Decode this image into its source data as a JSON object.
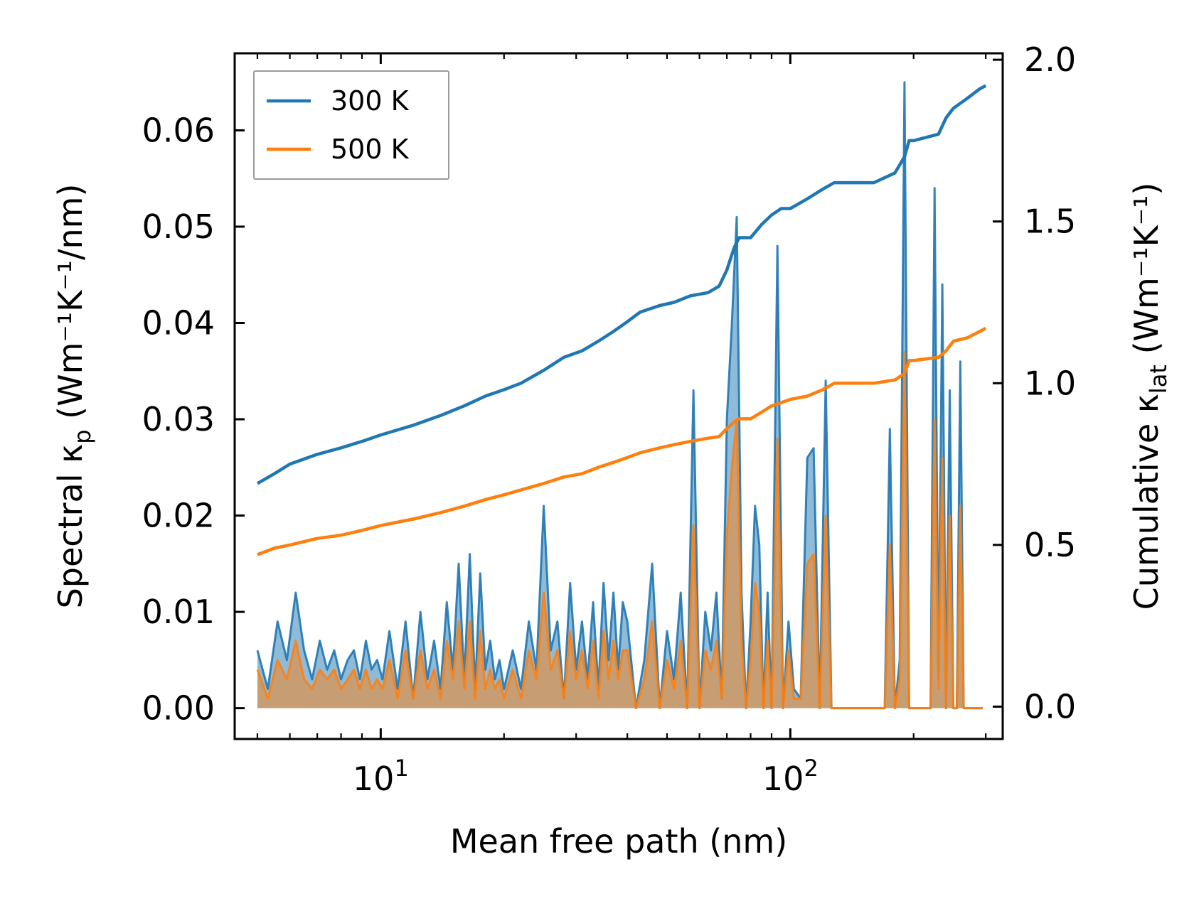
{
  "chart_data": {
    "type": "line",
    "xscale": "log",
    "xlabel": "Mean free path (nm)",
    "ylabel_left": {
      "prefix": "Spectral κ",
      "sub": "p",
      "suffix": " (Wm⁻¹K⁻¹/nm)"
    },
    "ylabel_right": {
      "prefix": "Cumulative κ",
      "sub": "lat",
      "suffix": " (Wm⁻¹K⁻¹)"
    },
    "xlim": [
      4.4,
      330
    ],
    "ylim_left": [
      -0.0032,
      0.068
    ],
    "ylim_right": [
      -0.1,
      2.02
    ],
    "xticks": [
      {
        "value": 10,
        "base": "10",
        "exp": "1"
      },
      {
        "value": 100,
        "base": "10",
        "exp": "2"
      }
    ],
    "yticks_left": [
      "0.00",
      "0.01",
      "0.02",
      "0.03",
      "0.04",
      "0.05",
      "0.06"
    ],
    "yticks_right": [
      "0.0",
      "0.5",
      "1.0",
      "1.5",
      "2.0"
    ],
    "legend": {
      "position": "top-left",
      "entries": [
        {
          "label": "300 K",
          "color": "#1f77b4"
        },
        {
          "label": "500 K",
          "color": "#ff7f0e"
        }
      ]
    },
    "series": [
      {
        "name": "300 K cumulative",
        "axis": "right",
        "color": "#1f77b4",
        "x": [
          5.0,
          5.5,
          6.0,
          7.0,
          8.0,
          9.0,
          10.0,
          12.0,
          14.0,
          16.0,
          18.0,
          20.0,
          22.0,
          25.0,
          28.0,
          31.0,
          34.0,
          37.0,
          40.0,
          43.0,
          48.0,
          52.0,
          57.0,
          63.0,
          67.0,
          70.0,
          73.0,
          75.0,
          80.0,
          85.0,
          90.0,
          95.0,
          100.0,
          110.0,
          120.0,
          128.0,
          140.0,
          160.0,
          180.0,
          190.0,
          195.0,
          200.0,
          230.0,
          240.0,
          250.0,
          270.0,
          290.0,
          300.0
        ],
        "y": [
          0.69,
          0.72,
          0.75,
          0.78,
          0.8,
          0.82,
          0.84,
          0.87,
          0.9,
          0.93,
          0.96,
          0.98,
          1.0,
          1.04,
          1.08,
          1.1,
          1.13,
          1.16,
          1.19,
          1.22,
          1.24,
          1.25,
          1.27,
          1.28,
          1.3,
          1.35,
          1.42,
          1.45,
          1.45,
          1.49,
          1.52,
          1.54,
          1.54,
          1.57,
          1.6,
          1.62,
          1.62,
          1.62,
          1.65,
          1.7,
          1.75,
          1.75,
          1.77,
          1.82,
          1.85,
          1.88,
          1.91,
          1.92
        ]
      },
      {
        "name": "500 K cumulative",
        "axis": "right",
        "color": "#ff7f0e",
        "x": [
          5.0,
          5.5,
          6.0,
          7.0,
          8.0,
          9.0,
          10.0,
          12.0,
          14.0,
          16.0,
          18.0,
          20.0,
          22.0,
          25.0,
          28.0,
          31.0,
          34.0,
          37.0,
          40.0,
          43.0,
          48.0,
          52.0,
          57.0,
          63.0,
          67.0,
          70.0,
          73.0,
          75.0,
          80.0,
          85.0,
          90.0,
          95.0,
          100.0,
          110.0,
          120.0,
          128.0,
          140.0,
          160.0,
          180.0,
          190.0,
          195.0,
          200.0,
          230.0,
          240.0,
          250.0,
          270.0,
          290.0,
          300.0
        ],
        "y": [
          0.47,
          0.49,
          0.5,
          0.52,
          0.53,
          0.545,
          0.56,
          0.58,
          0.6,
          0.62,
          0.64,
          0.655,
          0.67,
          0.69,
          0.71,
          0.72,
          0.74,
          0.755,
          0.77,
          0.785,
          0.8,
          0.81,
          0.82,
          0.83,
          0.835,
          0.86,
          0.88,
          0.89,
          0.89,
          0.91,
          0.93,
          0.94,
          0.95,
          0.96,
          0.98,
          1.0,
          1.0,
          1.0,
          1.01,
          1.03,
          1.07,
          1.07,
          1.08,
          1.1,
          1.13,
          1.14,
          1.16,
          1.17
        ]
      },
      {
        "name": "300 K spectral",
        "axis": "left",
        "color": "#1f77b4",
        "fill": true,
        "x": [
          5.0,
          5.3,
          5.6,
          5.9,
          6.2,
          6.5,
          6.8,
          7.1,
          7.4,
          7.7,
          8.0,
          8.3,
          8.6,
          8.9,
          9.2,
          9.5,
          9.8,
          10.1,
          10.5,
          11.0,
          11.5,
          12.0,
          12.5,
          13.0,
          13.5,
          14.0,
          14.5,
          15.0,
          15.5,
          16.0,
          16.5,
          17.0,
          17.5,
          18.0,
          18.5,
          19.0,
          19.5,
          20.0,
          21.0,
          22.0,
          23.0,
          24.0,
          25.0,
          26.0,
          27.0,
          28.0,
          29.0,
          30.0,
          31.0,
          32.0,
          33.0,
          34.0,
          35.0,
          36.0,
          37.0,
          38.0,
          39.0,
          40.0,
          42.0,
          44.0,
          46.0,
          48.0,
          50.0,
          52.0,
          54.0,
          56.0,
          58.0,
          60.0,
          62.0,
          64.0,
          66.0,
          68.0,
          70.0,
          72.0,
          74.0,
          76.0,
          78.0,
          80.0,
          82.0,
          84.0,
          86.0,
          88.0,
          90.0,
          93.0,
          96.0,
          99.0,
          102.0,
          106.0,
          110.0,
          114.0,
          118.0,
          122.0,
          126.0,
          130.0,
          135.0,
          140.0,
          150.0,
          160.0,
          170.0,
          175.0,
          180.0,
          185.0,
          190.0,
          195.0,
          200.0,
          210.0,
          220.0,
          225.0,
          230.0,
          235.0,
          240.0,
          245.0,
          250.0,
          255.0,
          260.0,
          265.0,
          270.0,
          275.0,
          280.0,
          285.0,
          290.0,
          295.0
        ],
        "y": [
          0.006,
          0.002,
          0.009,
          0.005,
          0.012,
          0.006,
          0.003,
          0.007,
          0.004,
          0.006,
          0.003,
          0.005,
          0.006,
          0.003,
          0.007,
          0.004,
          0.005,
          0.003,
          0.008,
          0.002,
          0.009,
          0.001,
          0.01,
          0.003,
          0.007,
          0.002,
          0.011,
          0.004,
          0.015,
          0.003,
          0.016,
          0.002,
          0.014,
          0.004,
          0.007,
          0.003,
          0.005,
          0.002,
          0.006,
          0.002,
          0.009,
          0.004,
          0.021,
          0.006,
          0.009,
          0.001,
          0.013,
          0.004,
          0.009,
          0.003,
          0.011,
          0.002,
          0.013,
          0.005,
          0.012,
          0.004,
          0.011,
          0.009,
          0.0,
          0.005,
          0.015,
          0.0,
          0.008,
          0.003,
          0.012,
          0.0,
          0.033,
          0.0,
          0.01,
          0.006,
          0.012,
          0.001,
          0.03,
          0.04,
          0.051,
          0.012,
          0.0,
          0.009,
          0.021,
          0.017,
          0.0,
          0.012,
          0.0,
          0.048,
          0.0,
          0.009,
          0.002,
          0.001,
          0.026,
          0.027,
          0.0,
          0.034,
          0.0,
          0.0,
          0.0,
          0.0,
          0.0,
          0.0,
          0.0,
          0.029,
          0.0,
          0.005,
          0.065,
          0.0,
          0.0,
          0.0,
          0.0,
          0.054,
          0.003,
          0.044,
          0.0,
          0.033,
          0.0,
          0.0,
          0.036,
          0.0,
          0.0,
          0.0,
          0.0,
          0.0,
          0.0,
          0.0
        ]
      },
      {
        "name": "500 K spectral",
        "axis": "left",
        "color": "#ff7f0e",
        "fill": true,
        "x": [
          5.0,
          5.3,
          5.6,
          5.9,
          6.2,
          6.5,
          6.8,
          7.1,
          7.4,
          7.7,
          8.0,
          8.3,
          8.6,
          8.9,
          9.2,
          9.5,
          9.8,
          10.1,
          10.5,
          11.0,
          11.5,
          12.0,
          12.5,
          13.0,
          13.5,
          14.0,
          14.5,
          15.0,
          15.5,
          16.0,
          16.5,
          17.0,
          17.5,
          18.0,
          18.5,
          19.0,
          19.5,
          20.0,
          21.0,
          22.0,
          23.0,
          24.0,
          25.0,
          26.0,
          27.0,
          28.0,
          29.0,
          30.0,
          31.0,
          32.0,
          33.0,
          34.0,
          35.0,
          36.0,
          37.0,
          38.0,
          39.0,
          40.0,
          42.0,
          44.0,
          46.0,
          48.0,
          50.0,
          52.0,
          54.0,
          56.0,
          58.0,
          60.0,
          62.0,
          64.0,
          66.0,
          68.0,
          70.0,
          72.0,
          74.0,
          76.0,
          78.0,
          80.0,
          82.0,
          84.0,
          86.0,
          88.0,
          90.0,
          93.0,
          96.0,
          99.0,
          102.0,
          106.0,
          110.0,
          114.0,
          118.0,
          122.0,
          126.0,
          130.0,
          135.0,
          140.0,
          150.0,
          160.0,
          170.0,
          175.0,
          180.0,
          185.0,
          190.0,
          195.0,
          200.0,
          210.0,
          220.0,
          225.0,
          230.0,
          235.0,
          240.0,
          245.0,
          250.0,
          255.0,
          260.0,
          265.0,
          270.0,
          275.0,
          280.0,
          285.0,
          290.0,
          295.0
        ],
        "y": [
          0.004,
          0.001,
          0.005,
          0.003,
          0.007,
          0.003,
          0.002,
          0.004,
          0.003,
          0.004,
          0.002,
          0.003,
          0.004,
          0.002,
          0.004,
          0.002,
          0.003,
          0.002,
          0.005,
          0.001,
          0.006,
          0.001,
          0.006,
          0.002,
          0.004,
          0.001,
          0.007,
          0.003,
          0.009,
          0.002,
          0.009,
          0.001,
          0.008,
          0.002,
          0.004,
          0.002,
          0.003,
          0.001,
          0.004,
          0.001,
          0.006,
          0.003,
          0.012,
          0.004,
          0.006,
          0.001,
          0.008,
          0.003,
          0.006,
          0.002,
          0.007,
          0.001,
          0.008,
          0.003,
          0.007,
          0.003,
          0.006,
          0.006,
          0.0,
          0.003,
          0.009,
          0.0,
          0.005,
          0.002,
          0.007,
          0.0,
          0.019,
          0.0,
          0.006,
          0.004,
          0.007,
          0.001,
          0.018,
          0.025,
          0.03,
          0.007,
          0.0,
          0.005,
          0.013,
          0.01,
          0.0,
          0.007,
          0.0,
          0.028,
          0.0,
          0.006,
          0.001,
          0.001,
          0.015,
          0.016,
          0.0,
          0.02,
          0.0,
          0.0,
          0.0,
          0.0,
          0.0,
          0.0,
          0.0,
          0.017,
          0.0,
          0.003,
          0.037,
          0.0,
          0.0,
          0.0,
          0.0,
          0.03,
          0.002,
          0.026,
          0.0,
          0.02,
          0.0,
          0.0,
          0.021,
          0.0,
          0.0,
          0.0,
          0.0,
          0.0,
          0.0,
          0.0
        ]
      }
    ]
  }
}
